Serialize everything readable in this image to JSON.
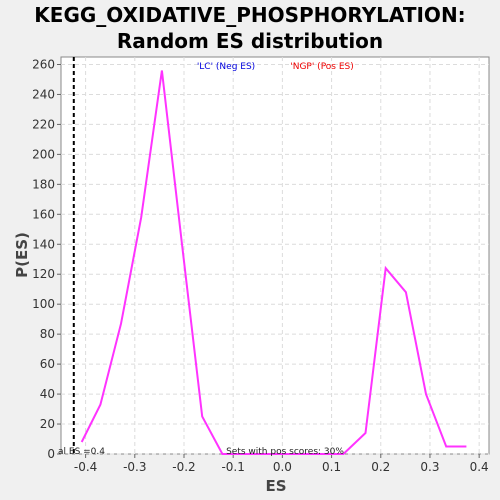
{
  "chart_data": {
    "type": "line",
    "title_line1": "KEGG_OXIDATIVE_PHOSPHORYLATION:",
    "title_line2": "Random ES distribution",
    "xlabel": "ES",
    "ylabel": "P(ES)",
    "xlim": [
      -0.45,
      0.42
    ],
    "ylim": [
      0,
      265
    ],
    "x_ticks": [
      -0.4,
      -0.3,
      -0.2,
      -0.1,
      0.0,
      0.1,
      0.2,
      0.3,
      0.4
    ],
    "x_tick_labels": [
      "-0.4",
      "-0.3",
      "-0.2",
      "-0.1",
      "0.0",
      "0.1",
      "0.2",
      "0.3",
      "0.4"
    ],
    "y_ticks": [
      0,
      20,
      40,
      60,
      80,
      100,
      120,
      140,
      160,
      180,
      200,
      220,
      240,
      260
    ],
    "y_tick_labels": [
      "0",
      "20",
      "40",
      "60",
      "80",
      "100",
      "120",
      "140",
      "160",
      "180",
      "200",
      "220",
      "240",
      "260"
    ],
    "grid": true,
    "series": [
      {
        "color": "#ff33ff",
        "x": [
          -0.408,
          -0.37,
          -0.328,
          -0.287,
          -0.245,
          -0.204,
          -0.163,
          -0.122,
          -0.081,
          -0.04,
          0.001,
          0.042,
          0.083,
          0.124,
          0.169,
          0.21,
          0.251,
          0.292,
          0.333,
          0.374
        ],
        "y": [
          8,
          33,
          87,
          158,
          256,
          140,
          25,
          0,
          0,
          0,
          0,
          0,
          0,
          0,
          14,
          124,
          108,
          40,
          5,
          5
        ]
      }
    ],
    "vline": {
      "x": -0.424,
      "style": "dashed",
      "color": "#000000",
      "label": "al ES =0.4"
    },
    "legend": [
      {
        "label": "'LC' (Neg ES)",
        "color": "#0000dd"
      },
      {
        "label": "'NGP' (Pos ES)",
        "color": "#ee0000"
      }
    ],
    "legend_placement": "top-center",
    "annotation": "Sets with pos scores: 30%"
  }
}
